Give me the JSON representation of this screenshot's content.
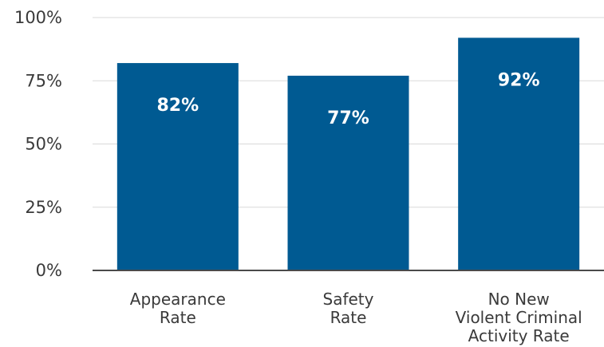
{
  "chart_data": {
    "type": "bar",
    "categories": [
      [
        "Appearance",
        "Rate"
      ],
      [
        "Safety",
        "Rate"
      ],
      [
        "No New",
        "Violent Criminal",
        "Activity Rate"
      ]
    ],
    "values": [
      82,
      77,
      92
    ],
    "data_labels": [
      "82%",
      "77%",
      "92%"
    ],
    "ylim": [
      0,
      100
    ],
    "yticks": [
      0,
      25,
      50,
      75,
      100
    ],
    "ytick_labels": [
      "0%",
      "25%",
      "50%",
      "75%",
      "100%"
    ],
    "grid": true,
    "colors": {
      "bar": "#005A92",
      "grid": "#d9d9d9",
      "axis": "#4a4a4a",
      "text": "#3a3a3a",
      "data_label": "#ffffff"
    }
  }
}
